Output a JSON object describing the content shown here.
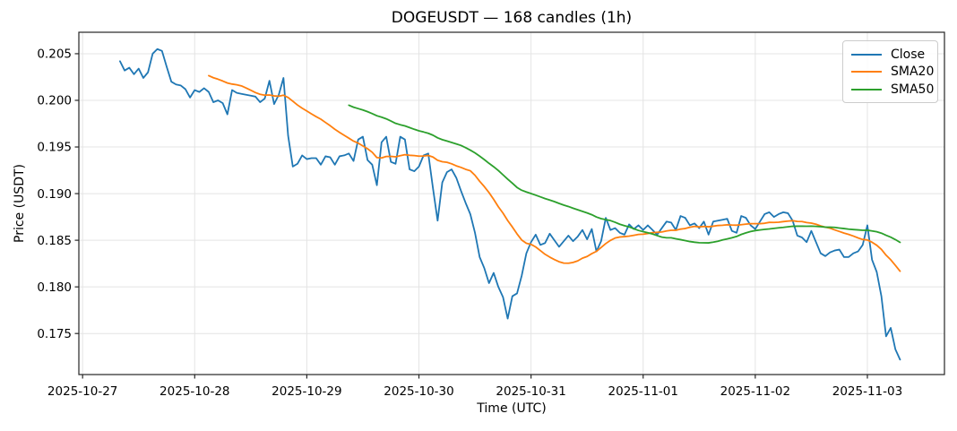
{
  "chart_data": {
    "type": "line",
    "title": "DOGEUSDT — 168 candles (1h)",
    "xlabel": "Time (UTC)",
    "ylabel": "Price (USDT)",
    "symbol": "DOGEUSDT",
    "interval": "1h",
    "num_candles": 168,
    "grid": true,
    "legend_position": "upper right",
    "x_tick_labels": [
      "2025-10-27",
      "2025-10-28",
      "2025-10-29",
      "2025-10-30",
      "2025-10-31",
      "2025-11-01",
      "2025-11-02",
      "2025-11-03"
    ],
    "x_tick_indices": [
      -8,
      16,
      40,
      64,
      88,
      112,
      136,
      160
    ],
    "xlim_indices": [
      -8.8,
      176.5
    ],
    "y_ticks": [
      0.175,
      0.18,
      0.185,
      0.19,
      0.195,
      0.2,
      0.205
    ],
    "y_tick_labels": [
      "0.175",
      "0.180",
      "0.185",
      "0.190",
      "0.195",
      "0.200",
      "0.205"
    ],
    "ylim": [
      0.1706,
      0.2073
    ],
    "series": [
      {
        "name": "Close",
        "color": "#1f77b4",
        "values": [
          0.2042,
          0.2032,
          0.2035,
          0.2028,
          0.2034,
          0.2024,
          0.203,
          0.205,
          0.2055,
          0.2053,
          0.2036,
          0.202,
          0.2017,
          0.2016,
          0.2012,
          0.2003,
          0.2011,
          0.2009,
          0.2013,
          0.2009,
          0.1998,
          0.2,
          0.1997,
          0.1985,
          0.2011,
          0.2008,
          0.2007,
          0.2006,
          0.2005,
          0.2004,
          0.1998,
          0.2002,
          0.2021,
          0.1996,
          0.2006,
          0.2024,
          0.1962,
          0.1929,
          0.1932,
          0.1941,
          0.1937,
          0.1938,
          0.1938,
          0.1931,
          0.194,
          0.1939,
          0.1931,
          0.194,
          0.1941,
          0.1943,
          0.1935,
          0.1958,
          0.1961,
          0.1936,
          0.1931,
          0.1909,
          0.1955,
          0.1961,
          0.1934,
          0.1932,
          0.1961,
          0.1958,
          0.1926,
          0.1924,
          0.1929,
          0.1941,
          0.1943,
          0.1906,
          0.1871,
          0.1912,
          0.1923,
          0.1926,
          0.1917,
          0.1903,
          0.189,
          0.1878,
          0.1858,
          0.1832,
          0.182,
          0.1804,
          0.1815,
          0.18,
          0.1789,
          0.1766,
          0.179,
          0.1793,
          0.1812,
          0.1836,
          0.1848,
          0.1856,
          0.1845,
          0.1847,
          0.1857,
          0.185,
          0.1843,
          0.1849,
          0.1855,
          0.1849,
          0.1854,
          0.1861,
          0.1851,
          0.1862,
          0.1838,
          0.1849,
          0.1874,
          0.1861,
          0.1863,
          0.1858,
          0.1856,
          0.1867,
          0.1862,
          0.1866,
          0.1861,
          0.1866,
          0.1861,
          0.1856,
          0.1863,
          0.187,
          0.1869,
          0.1861,
          0.1876,
          0.1874,
          0.1866,
          0.1868,
          0.1863,
          0.187,
          0.1856,
          0.187,
          0.1871,
          0.1872,
          0.1873,
          0.186,
          0.1858,
          0.1876,
          0.1874,
          0.1866,
          0.1862,
          0.187,
          0.1878,
          0.188,
          0.1875,
          0.1878,
          0.188,
          0.1879,
          0.1871,
          0.1855,
          0.1853,
          0.1848,
          0.186,
          0.1848,
          0.1836,
          0.1833,
          0.1837,
          0.1839,
          0.184,
          0.1832,
          0.1832,
          0.1836,
          0.1838,
          0.1845,
          0.1866,
          0.1829,
          0.1816,
          0.179,
          0.1747,
          0.1756,
          0.1733,
          0.1722
        ]
      },
      {
        "name": "SMA20",
        "color": "#ff7f0e",
        "derived_from": "Close",
        "moving_average_window": 20
      },
      {
        "name": "SMA50",
        "color": "#2ca02c",
        "derived_from": "Close",
        "moving_average_window": 50
      }
    ]
  }
}
